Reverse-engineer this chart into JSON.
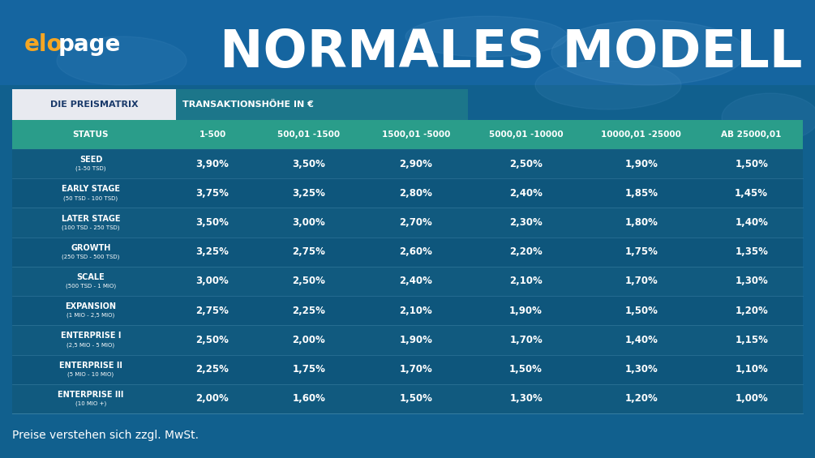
{
  "title": "NORMALES MODELL",
  "bg_color": "#1565a0",
  "table_bg": "#0d5c7a",
  "header_bg": "#2a9d8a",
  "header_label": "DIE PREISMATRIX",
  "header_label_color": "#1a4a8a",
  "sub_header": "TRANSAKTIONSHÖHE IN €",
  "footer": "Preise verstehen sich zzgl. MwSt.",
  "col_headers": [
    "STATUS",
    "1-500",
    "500,01 -1500",
    "1500,01 -5000",
    "5000,01 -10000",
    "10000,01 -25000",
    "AB 25000,01"
  ],
  "row_data": [
    [
      "SEED",
      "(1-50 TSD)",
      "3,90%",
      "3,50%",
      "2,90%",
      "2,50%",
      "1,90%",
      "1,50%"
    ],
    [
      "EARLY STAGE",
      "(50 TSD - 100 TSD)",
      "3,75%",
      "3,25%",
      "2,80%",
      "2,40%",
      "1,85%",
      "1,45%"
    ],
    [
      "LATER STAGE",
      "(100 TSD - 250 TSD)",
      "3,50%",
      "3,00%",
      "2,70%",
      "2,30%",
      "1,80%",
      "1,40%"
    ],
    [
      "GROWTH",
      "(250 TSD - 500 TSD)",
      "3,25%",
      "2,75%",
      "2,60%",
      "2,20%",
      "1,75%",
      "1,35%"
    ],
    [
      "SCALE",
      "(500 TSD - 1 MIO)",
      "3,00%",
      "2,50%",
      "2,40%",
      "2,10%",
      "1,70%",
      "1,30%"
    ],
    [
      "EXPANSION",
      "(1 MIO - 2,5 MIO)",
      "2,75%",
      "2,25%",
      "2,10%",
      "1,90%",
      "1,50%",
      "1,20%"
    ],
    [
      "ENTERPRISE I",
      "(2,5 MIO - 5 MIO)",
      "2,50%",
      "2,00%",
      "1,90%",
      "1,70%",
      "1,40%",
      "1,15%"
    ],
    [
      "ENTERPRISE II",
      "(5 MIO - 10 MIO)",
      "2,25%",
      "1,75%",
      "1,70%",
      "1,50%",
      "1,30%",
      "1,10%"
    ],
    [
      "ENTERPRISE III",
      "(10 MIO +)",
      "2,00%",
      "1,60%",
      "1,50%",
      "1,30%",
      "1,20%",
      "1,00%"
    ]
  ],
  "col_widths_rel": [
    1.5,
    0.82,
    1.02,
    1.02,
    1.08,
    1.12,
    0.98
  ],
  "elopage_colors": [
    "#f5a623",
    "#ffffff"
  ],
  "logo_parts": [
    [
      "el",
      "#f5a623"
    ],
    [
      "o",
      "#f5a623"
    ],
    [
      "page",
      "#ffffff"
    ]
  ],
  "logo_text": "elopage",
  "logo_el_color": "#f5a623",
  "logo_page_color": "#ffffff"
}
